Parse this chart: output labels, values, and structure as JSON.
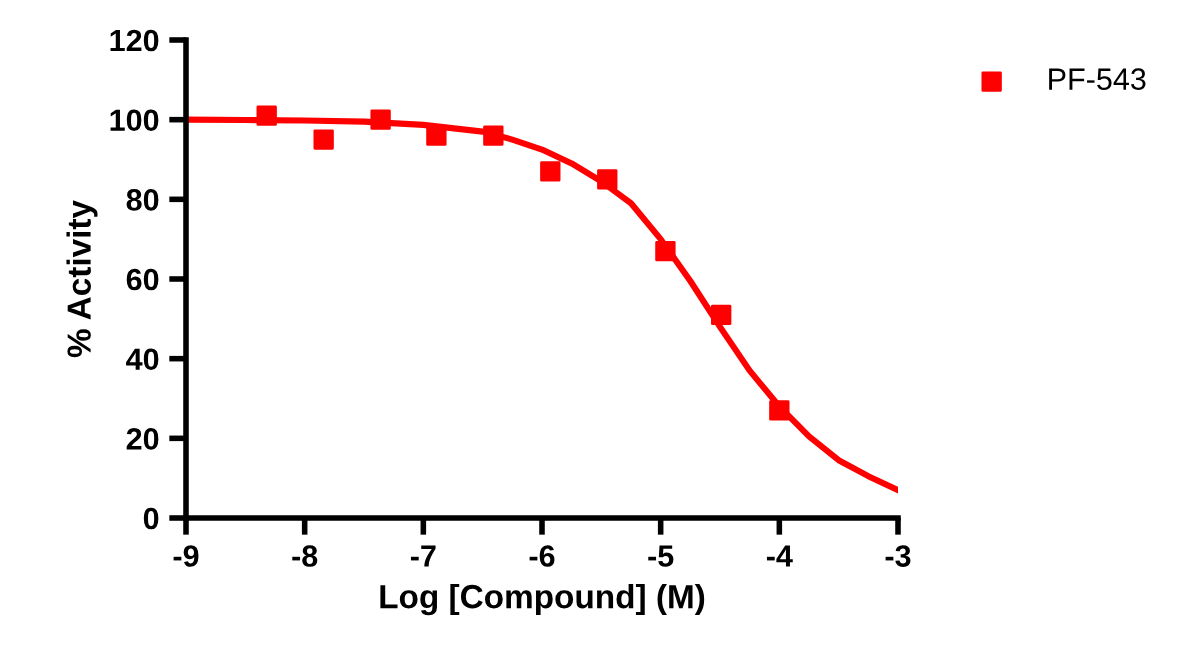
{
  "chart_data": {
    "type": "scatter",
    "xlabel": "Log [Compound] (M)",
    "ylabel": "% Activity",
    "series": [
      {
        "name": "PF-543",
        "color": "#ff0000",
        "marker": "square",
        "x": [
          -8.32,
          -7.84,
          -7.36,
          -6.89,
          -6.41,
          -5.93,
          -5.45,
          -4.96,
          -4.49,
          -4.0
        ],
        "values": [
          101,
          95,
          100,
          96,
          96,
          87,
          85,
          67,
          51,
          27
        ]
      },
      {
        "type": "line",
        "color": "#ff0000",
        "marker": "none",
        "line_style": "solid",
        "x": [
          -9,
          -8.5,
          -8,
          -7.5,
          -7,
          -6.5,
          -6.25,
          -6,
          -5.75,
          -5.5,
          -5.25,
          -5,
          -4.75,
          -4.5,
          -4.25,
          -4,
          -3.75,
          -3.5,
          -3.25,
          -3
        ],
        "values": [
          100,
          99.9,
          99.8,
          99.5,
          98.7,
          97,
          95,
          92.5,
          89,
          84.5,
          79,
          70,
          59.5,
          48,
          37,
          28,
          20.5,
          14.5,
          10.5,
          7
        ]
      }
    ],
    "xlim": [
      -9,
      -3
    ],
    "xticks": [
      -9,
      -8,
      -7,
      -6,
      -5,
      -4,
      -3
    ],
    "ylim": [
      0,
      120
    ],
    "yticks": [
      0,
      20,
      40,
      60,
      80,
      100,
      120
    ],
    "grid": false,
    "legend": "top right"
  }
}
